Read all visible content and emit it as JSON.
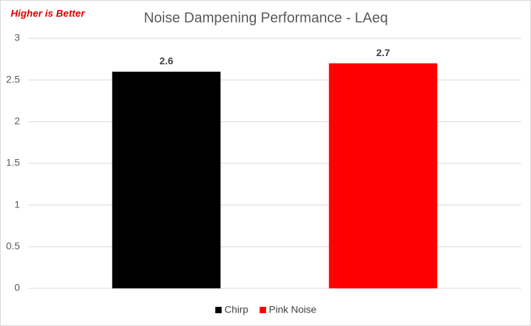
{
  "chart_data": {
    "type": "bar",
    "title": "Noise Dampening Performance - LAeq",
    "annotation": "Higher is Better",
    "categories": [
      null
    ],
    "series": [
      {
        "name": "Chirp",
        "color": "#000000",
        "values": [
          2.6
        ]
      },
      {
        "name": "Pink Noise",
        "color": "#ff0000",
        "values": [
          2.7
        ]
      }
    ],
    "ylim": [
      0,
      3
    ],
    "yticks": [
      0,
      0.5,
      1,
      1.5,
      2,
      2.5,
      3
    ],
    "grid": true,
    "legend": "bottom"
  }
}
